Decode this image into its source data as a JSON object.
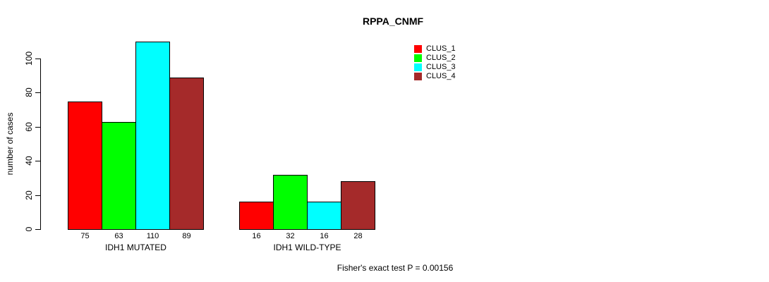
{
  "title": "RPPA_CNMF",
  "footer": "Fisher's exact test P = 0.00156",
  "chart_data": {
    "type": "bar",
    "categories": [
      "IDH1 MUTATED",
      "IDH1 WILD-TYPE"
    ],
    "series": [
      {
        "name": "CLUS_1",
        "color": "#FF0000",
        "values": [
          75,
          16
        ]
      },
      {
        "name": "CLUS_2",
        "color": "#00FF00",
        "values": [
          63,
          32
        ]
      },
      {
        "name": "CLUS_3",
        "color": "#00FFFF",
        "values": [
          110,
          16
        ]
      },
      {
        "name": "CLUS_4",
        "color": "#A52A2A",
        "values": [
          89,
          28
        ]
      }
    ],
    "title": "RPPA_CNMF",
    "xlabel": "",
    "ylabel": "number of cases",
    "yticks": [
      0,
      20,
      40,
      60,
      80,
      100
    ],
    "ylim": [
      0,
      110
    ],
    "grid": false,
    "legend_position": "top-right",
    "bar_value_labels_shown": true,
    "annotation": "Fisher's exact test P = 0.00156"
  }
}
